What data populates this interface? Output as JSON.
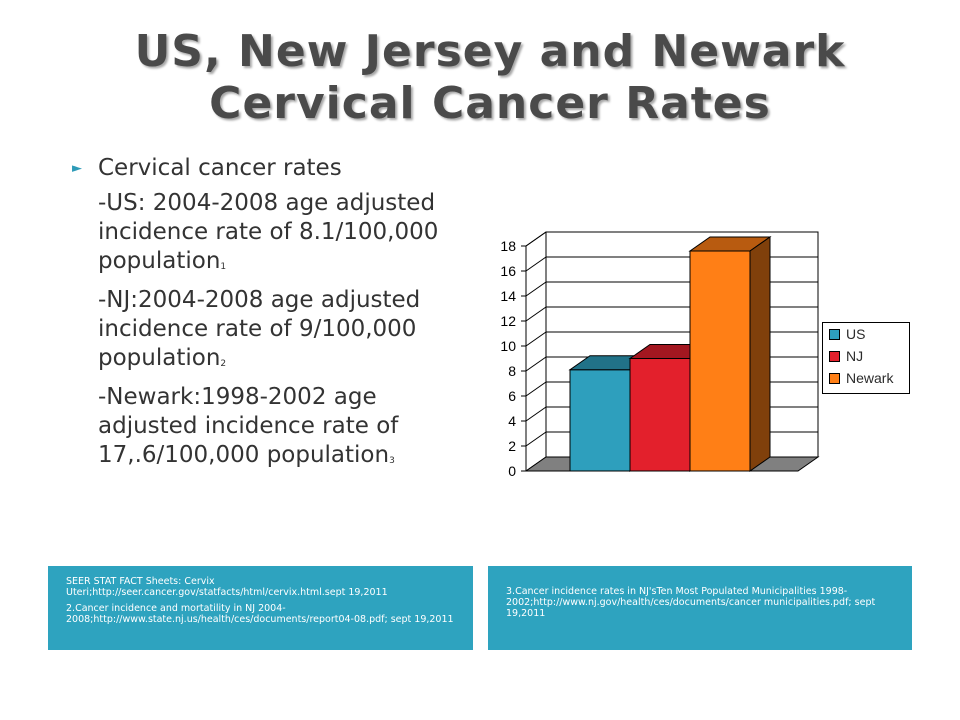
{
  "title": {
    "line1": "US, New Jersey and Newark",
    "line2": "Cervical Cancer Rates"
  },
  "bullets": {
    "head": "Cervical cancer rates",
    "items": [
      {
        "text": "-US: 2004-2008 age adjusted incidence rate of 8.1/100,000 population",
        "sup": "1"
      },
      {
        "text": "-NJ:2004-2008 age adjusted incidence rate of 9/100,000 population",
        "sup": "2"
      },
      {
        "text": "-Newark:1998-2002 age adjusted incidence rate of 17,.6/100,000 population",
        "sup": "3"
      }
    ]
  },
  "chart_data": {
    "type": "bar",
    "categories": [
      "US",
      "NJ",
      "Newark"
    ],
    "values": [
      8.1,
      9,
      17.6
    ],
    "colors": [
      "#2e9fbd",
      "#e3202c",
      "#ff7f16"
    ],
    "ylim": [
      0,
      18
    ],
    "yticks": [
      "0",
      "2",
      "4",
      "6",
      "8",
      "10",
      "12",
      "14",
      "16",
      "18"
    ],
    "grid": true,
    "legend": "right",
    "legend_entries": [
      "US",
      "NJ",
      "Newark"
    ],
    "title": "",
    "xlabel": "",
    "ylabel": ""
  },
  "references": {
    "left": [
      "SEER STAT FACT Sheets: Cervix Uteri;http://seer.cancer.gov/statfacts/html/cervix.html.sept 19,2011",
      "2.Cancer incidence and mortatility in NJ 2004-2008;http://www.state.nj.us/health/ces/documents/report04-08.pdf; sept 19,2011"
    ],
    "right": [
      "3.Cancer incidence rates in NJ'sTen Most Populated Municipalities 1998-2002;http://www.nj.gov/health/ces/documents/cancer municipalities.pdf; sept 19,2011"
    ]
  }
}
